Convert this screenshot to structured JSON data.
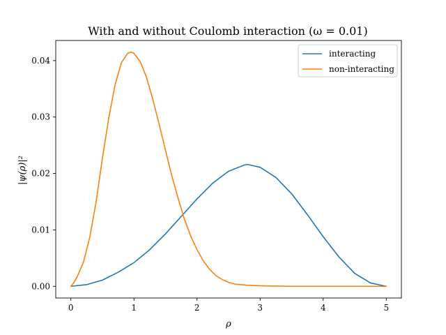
{
  "chart_data": {
    "type": "line",
    "title": "With and without Coulomb interaction (ω = 0.01)",
    "xlabel": "ρ",
    "ylabel": "|ψ(ρ)|²",
    "xlim": [
      -0.24,
      5.24
    ],
    "ylim": [
      -0.00207,
      0.04357
    ],
    "xticks": [
      0,
      1,
      2,
      3,
      4,
      5
    ],
    "xtick_labels": [
      "0",
      "1",
      "2",
      "3",
      "4",
      "5"
    ],
    "yticks": [
      0.0,
      0.01,
      0.02,
      0.03,
      0.04
    ],
    "ytick_labels": [
      "0.00",
      "0.01",
      "0.02",
      "0.03",
      "0.04"
    ],
    "grid": false,
    "legend_position": "top-right",
    "series": [
      {
        "name": "interacting",
        "color": "#1f77b4",
        "x": [
          0,
          0.25,
          0.5,
          0.75,
          1.0,
          1.25,
          1.5,
          1.75,
          2.0,
          2.25,
          2.5,
          2.75,
          2.8,
          3.0,
          3.25,
          3.5,
          3.75,
          4.0,
          4.25,
          4.5,
          4.75,
          5.0
        ],
        "y": [
          0.0,
          0.0003,
          0.0011,
          0.0025,
          0.0042,
          0.0065,
          0.0093,
          0.0124,
          0.0155,
          0.0183,
          0.0204,
          0.0215,
          0.0216,
          0.0211,
          0.0193,
          0.0164,
          0.0127,
          0.0088,
          0.0052,
          0.0023,
          0.0006,
          0.0
        ]
      },
      {
        "name": "non-interacting",
        "color": "#ff7f0e",
        "x": [
          0,
          0.05,
          0.1,
          0.2,
          0.3,
          0.4,
          0.5,
          0.6,
          0.7,
          0.8,
          0.9,
          0.95,
          1.0,
          1.1,
          1.2,
          1.3,
          1.4,
          1.5,
          1.6,
          1.7,
          1.8,
          1.9,
          2.0,
          2.1,
          2.2,
          2.3,
          2.4,
          2.5,
          2.6,
          2.8,
          3.0,
          3.2,
          3.5,
          4.0,
          4.5,
          5.0
        ],
        "y": [
          0.0,
          0.0007,
          0.0017,
          0.0043,
          0.0087,
          0.015,
          0.0227,
          0.0298,
          0.0357,
          0.0396,
          0.0413,
          0.0415,
          0.0413,
          0.0398,
          0.037,
          0.0331,
          0.0287,
          0.0241,
          0.0196,
          0.0156,
          0.0119,
          0.0089,
          0.0065,
          0.0045,
          0.003,
          0.0019,
          0.0012,
          0.0007,
          0.0004,
          0.0002,
          0.0001,
          5e-05,
          0.0,
          0.0,
          0.0,
          0.0
        ]
      }
    ]
  }
}
